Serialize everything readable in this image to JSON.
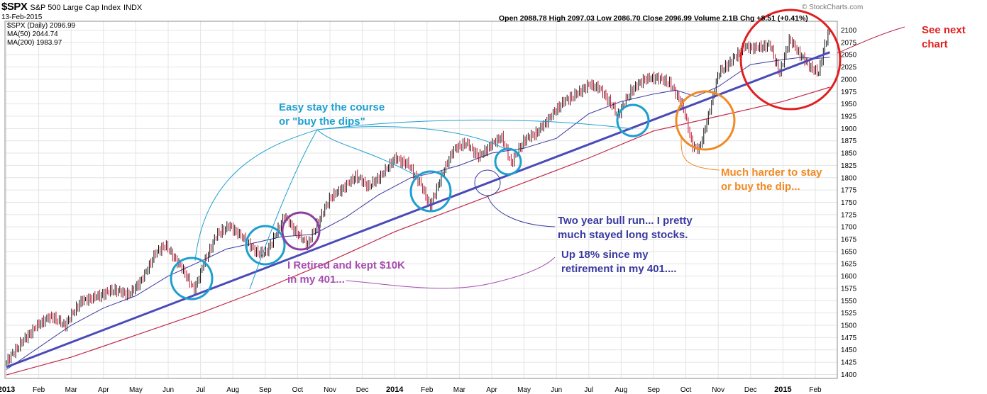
{
  "header": {
    "symbol": "$SPX",
    "name": "S&P 500 Large Cap Index",
    "exchange": "INDX",
    "date": "13-Feb-2015",
    "legend": [
      {
        "label": "$SPX (Daily) 2096.99",
        "color": "#000000"
      },
      {
        "label": "MA(50) 2044.74",
        "color": "#3a3aa0"
      },
      {
        "label": "MA(200) 1983.97",
        "color": "#9b1b5a"
      }
    ],
    "quote": "Open 2088.78  High 2097.03  Low 2086.70  Close 2096.99  Volume 2.1B  Chg +8.51 (+0.41%)",
    "credit": "© StockCharts.com"
  },
  "annotations": {
    "easy": "Easy  stay the course\nor \"buy the dips\"",
    "harder": "Much harder to stay\nor buy the dip...",
    "next": "See next\nchart",
    "bull": "Two year bull run... I pretty\nmuch stayed long stocks.",
    "up": "Up 18% since my\nretirement in my 401....",
    "retired": "I Retired and kept $10K\nin my 401..."
  },
  "colors": {
    "price_up": "#111111",
    "price_down": "#c8102e",
    "ma50": "#3a3aa0",
    "ma200": "#c0284a",
    "trendline": "#4a4ab8",
    "circle_blue": "#1e9fd0",
    "circle_purple": "#8e3f9e",
    "circle_orange": "#f08a24",
    "circle_red": "#e02020",
    "ann_blue": "#1e9fd0",
    "ann_orange": "#f08a24",
    "ann_red": "#e02020",
    "ann_navy": "#3a3aa0",
    "ann_purple": "#a64db0"
  },
  "chart_data": {
    "type": "line",
    "title": "$SPX S&P 500 Large Cap Index INDX",
    "x_tick_labels": [
      "2013",
      "Feb",
      "Mar",
      "Apr",
      "May",
      "Jun",
      "Jul",
      "Aug",
      "Sep",
      "Oct",
      "Nov",
      "Dec",
      "2014",
      "Feb",
      "Mar",
      "Apr",
      "May",
      "Jun",
      "Jul",
      "Aug",
      "Sep",
      "Oct",
      "Nov",
      "Dec",
      "2015",
      "Feb"
    ],
    "y_ticks": [
      1400,
      1425,
      1450,
      1475,
      1500,
      1525,
      1550,
      1575,
      1600,
      1625,
      1650,
      1675,
      1700,
      1725,
      1750,
      1775,
      1800,
      1825,
      1850,
      1875,
      1900,
      1925,
      1950,
      1975,
      2000,
      2025,
      2050,
      2075,
      2100
    ],
    "ylim": [
      1392,
      2118
    ],
    "xlim": [
      0,
      25.45
    ],
    "series": [
      {
        "name": "$SPX (Daily)",
        "points": [
          [
            0.0,
            1426
          ],
          [
            0.5,
            1466
          ],
          [
            1.0,
            1500
          ],
          [
            1.4,
            1515
          ],
          [
            1.8,
            1495
          ],
          [
            2.3,
            1545
          ],
          [
            2.8,
            1555
          ],
          [
            3.3,
            1570
          ],
          [
            3.8,
            1562
          ],
          [
            4.2,
            1595
          ],
          [
            4.6,
            1648
          ],
          [
            4.9,
            1666
          ],
          [
            5.2,
            1640
          ],
          [
            5.5,
            1612
          ],
          [
            5.8,
            1575
          ],
          [
            6.1,
            1630
          ],
          [
            6.5,
            1688
          ],
          [
            6.9,
            1705
          ],
          [
            7.3,
            1680
          ],
          [
            7.7,
            1650
          ],
          [
            8.0,
            1645
          ],
          [
            8.3,
            1680
          ],
          [
            8.6,
            1720
          ],
          [
            8.9,
            1690
          ],
          [
            9.3,
            1660
          ],
          [
            9.6,
            1700
          ],
          [
            10.0,
            1755
          ],
          [
            10.4,
            1775
          ],
          [
            10.8,
            1800
          ],
          [
            11.2,
            1780
          ],
          [
            11.6,
            1805
          ],
          [
            12.0,
            1840
          ],
          [
            12.4,
            1830
          ],
          [
            12.8,
            1790
          ],
          [
            13.1,
            1745
          ],
          [
            13.4,
            1800
          ],
          [
            13.8,
            1860
          ],
          [
            14.2,
            1875
          ],
          [
            14.6,
            1845
          ],
          [
            15.0,
            1870
          ],
          [
            15.3,
            1885
          ],
          [
            15.6,
            1830
          ],
          [
            16.0,
            1875
          ],
          [
            16.4,
            1890
          ],
          [
            16.8,
            1920
          ],
          [
            17.2,
            1950
          ],
          [
            17.6,
            1965
          ],
          [
            18.0,
            1985
          ],
          [
            18.3,
            1980
          ],
          [
            18.6,
            1955
          ],
          [
            18.9,
            1925
          ],
          [
            19.3,
            1975
          ],
          [
            19.7,
            2000
          ],
          [
            20.1,
            2005
          ],
          [
            20.5,
            1995
          ],
          [
            20.9,
            1950
          ],
          [
            21.2,
            1870
          ],
          [
            21.4,
            1860
          ],
          [
            21.7,
            1930
          ],
          [
            22.0,
            2015
          ],
          [
            22.4,
            2040
          ],
          [
            22.8,
            2068
          ],
          [
            23.2,
            2065
          ],
          [
            23.6,
            2070
          ],
          [
            23.9,
            2010
          ],
          [
            24.2,
            2080
          ],
          [
            24.5,
            2050
          ],
          [
            24.8,
            2025
          ],
          [
            25.1,
            2008
          ],
          [
            25.3,
            2068
          ],
          [
            25.45,
            2097
          ]
        ]
      },
      {
        "name": "MA(50)",
        "points": [
          [
            0.0,
            1410
          ],
          [
            1.0,
            1455
          ],
          [
            2.0,
            1500
          ],
          [
            3.0,
            1535
          ],
          [
            4.0,
            1560
          ],
          [
            5.0,
            1600
          ],
          [
            6.0,
            1630
          ],
          [
            6.8,
            1655
          ],
          [
            7.5,
            1665
          ],
          [
            8.5,
            1680
          ],
          [
            9.5,
            1685
          ],
          [
            10.5,
            1720
          ],
          [
            11.5,
            1765
          ],
          [
            12.5,
            1800
          ],
          [
            13.2,
            1810
          ],
          [
            14.0,
            1825
          ],
          [
            15.0,
            1850
          ],
          [
            16.0,
            1860
          ],
          [
            17.0,
            1880
          ],
          [
            18.0,
            1930
          ],
          [
            19.0,
            1955
          ],
          [
            20.0,
            1970
          ],
          [
            20.7,
            1978
          ],
          [
            21.3,
            1965
          ],
          [
            22.0,
            1985
          ],
          [
            23.0,
            2030
          ],
          [
            24.0,
            2040
          ],
          [
            24.6,
            2045
          ],
          [
            25.0,
            2042
          ],
          [
            25.45,
            2045
          ]
        ]
      },
      {
        "name": "MA(200)",
        "points": [
          [
            0.0,
            1399
          ],
          [
            2.0,
            1435
          ],
          [
            4.0,
            1480
          ],
          [
            6.0,
            1525
          ],
          [
            8.0,
            1575
          ],
          [
            10.0,
            1630
          ],
          [
            12.0,
            1690
          ],
          [
            14.0,
            1740
          ],
          [
            16.0,
            1790
          ],
          [
            18.0,
            1840
          ],
          [
            20.0,
            1895
          ],
          [
            22.0,
            1925
          ],
          [
            24.0,
            1955
          ],
          [
            25.45,
            1984
          ]
        ]
      },
      {
        "name": "Trendline",
        "points": [
          [
            0.0,
            1415
          ],
          [
            25.45,
            2055
          ]
        ]
      }
    ]
  }
}
